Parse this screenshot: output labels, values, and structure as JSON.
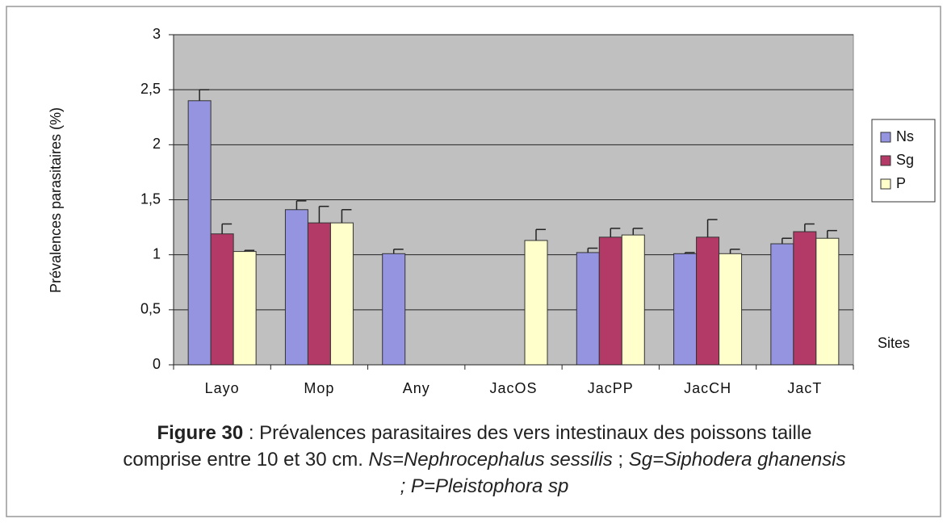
{
  "chart_data": {
    "type": "bar",
    "y_label": "Prévalences parasitaires (%)",
    "x_label": "Sites",
    "categories": [
      "Layo",
      "Mop",
      "Any",
      "JacOS",
      "JacPP",
      "JacCH",
      "JacT"
    ],
    "series": [
      {
        "name": "Ns",
        "color": "#9494e0",
        "values": [
          2.4,
          1.41,
          1.01,
          0,
          1.02,
          1.01,
          1.1
        ],
        "errors": [
          0.1,
          0.08,
          0.04,
          null,
          0.04,
          0.01,
          0.05
        ]
      },
      {
        "name": "Sg",
        "color": "#b33a66",
        "values": [
          1.19,
          1.29,
          0,
          0,
          1.16,
          1.16,
          1.21
        ],
        "errors": [
          0.09,
          0.15,
          null,
          null,
          0.08,
          0.16,
          0.07
        ]
      },
      {
        "name": "P",
        "color": "#ffffcc",
        "values": [
          1.03,
          1.29,
          0,
          1.13,
          1.18,
          1.01,
          1.15
        ],
        "errors": [
          0.01,
          0.12,
          null,
          0.1,
          0.06,
          0.04,
          0.07
        ]
      }
    ],
    "ylim": [
      0,
      3
    ],
    "yticks": [
      0,
      {
        "value": 0.5,
        "label": "0,5"
      },
      1,
      {
        "value": 1.5,
        "label": "1,5"
      },
      2,
      {
        "value": 2.5,
        "label": "2,5"
      },
      3
    ],
    "grid": true,
    "legend": "right",
    "caption": [
      {
        "text": "Figure 30",
        "style": "bold"
      },
      {
        "text": " : Prévalences parasitaires des vers intestinaux des poissons taille  comprise entre 10 et 30 cm. ",
        "style": "normal"
      },
      {
        "text": "Ns=Nephrocephalus sessilis",
        "style": "italic"
      },
      {
        "text": " ; ",
        "style": "normal"
      },
      {
        "text": "Sg=Siphodera ghanensis ; P=Pleistophora sp",
        "style": "italic"
      }
    ]
  }
}
